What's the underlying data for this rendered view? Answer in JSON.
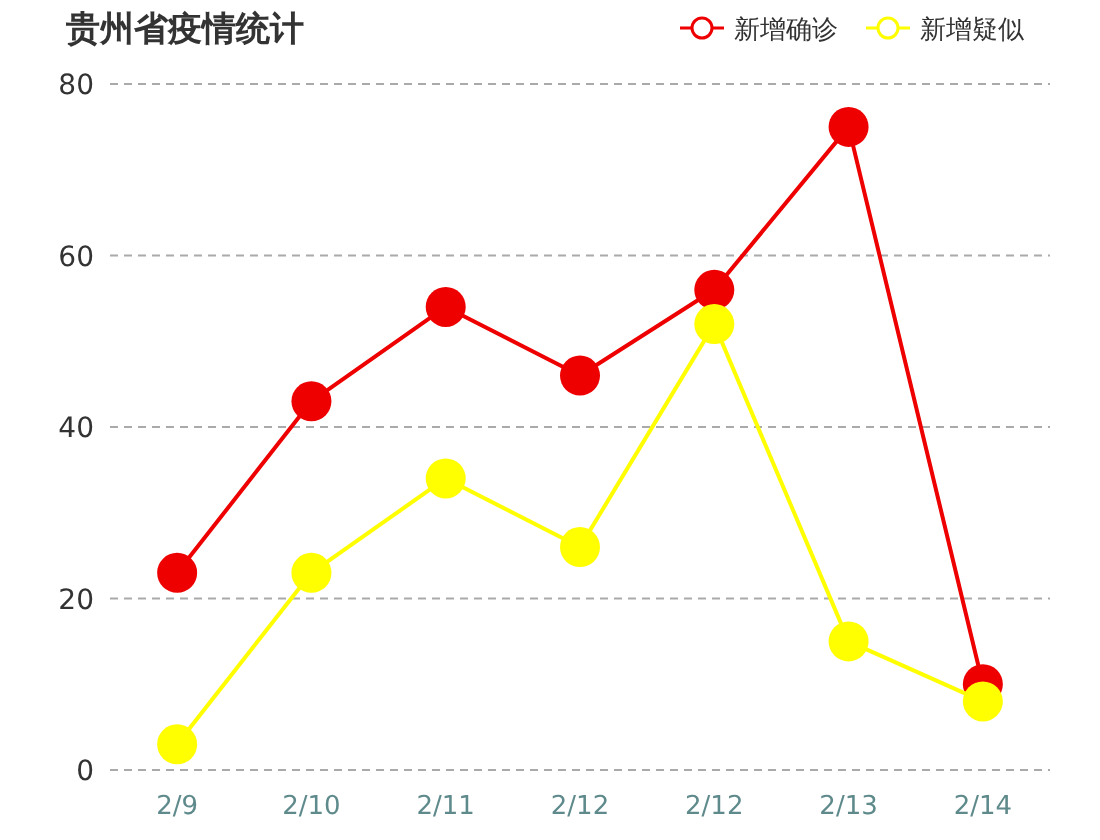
{
  "chart_data": {
    "type": "line",
    "title": "贵州省疫情统计",
    "categories": [
      "2/9",
      "2/10",
      "2/11",
      "2/12",
      "2/12",
      "2/13",
      "2/14"
    ],
    "series": [
      {
        "name": "新增确诊",
        "color": "#ee0000",
        "values": [
          23,
          43,
          54,
          46,
          56,
          75,
          10
        ]
      },
      {
        "name": "新增疑似",
        "color": "#ffff00",
        "values": [
          3,
          23,
          34,
          26,
          52,
          15,
          8
        ]
      }
    ],
    "ylim": [
      0,
      80
    ],
    "yticks": [
      0,
      20,
      40,
      60,
      80
    ],
    "grid": "y",
    "legend": "top right",
    "marker": "circle"
  }
}
